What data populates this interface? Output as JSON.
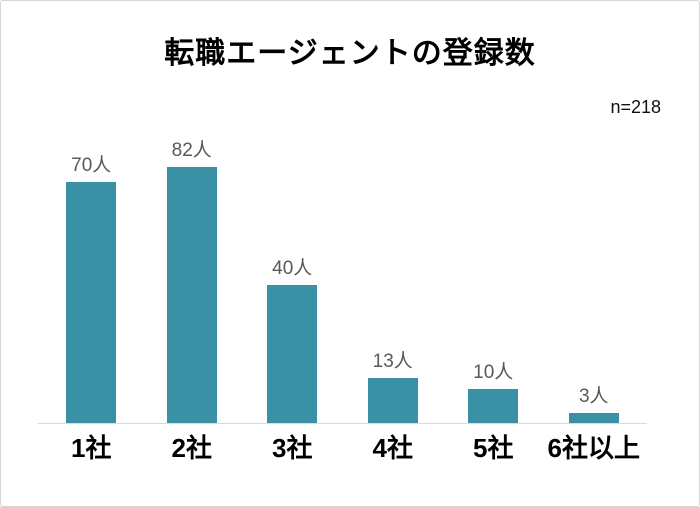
{
  "header": {
    "title": "転職エージェントの登録数",
    "sample_size": "n=218"
  },
  "chart_data": {
    "type": "bar",
    "title": "転職エージェントの登録数",
    "annotation": "n=218",
    "categories": [
      "1社",
      "2社",
      "3社",
      "4社",
      "5社",
      "6社以上"
    ],
    "values": [
      70,
      82,
      40,
      13,
      10,
      3
    ],
    "value_labels": [
      "70人",
      "82人",
      "40人",
      "13人",
      "10人",
      "3人"
    ],
    "unit": "人",
    "xlabel": "",
    "ylabel": "",
    "ylim": [
      0,
      82
    ],
    "grid": false,
    "legend": false,
    "colors": {
      "bar": "#3A91A5",
      "value_label": "#595959",
      "category_label": "#000000",
      "axis_line": "#D9D9D9",
      "background": "#FFFFFF",
      "border": "#D5D5D5"
    }
  }
}
